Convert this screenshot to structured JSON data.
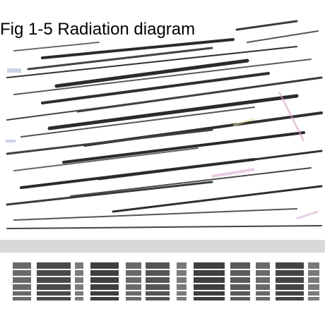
{
  "caption": "Fig 1-5 Radiation diagram",
  "colors": {
    "streak": "#2b2b2b",
    "streak_light": "#8a8a8a",
    "band": "#d9d9d9",
    "tint_pink": "#d9a3c9",
    "tint_blue": "#9fb0d6",
    "tint_yellow": "#e6df9a"
  }
}
